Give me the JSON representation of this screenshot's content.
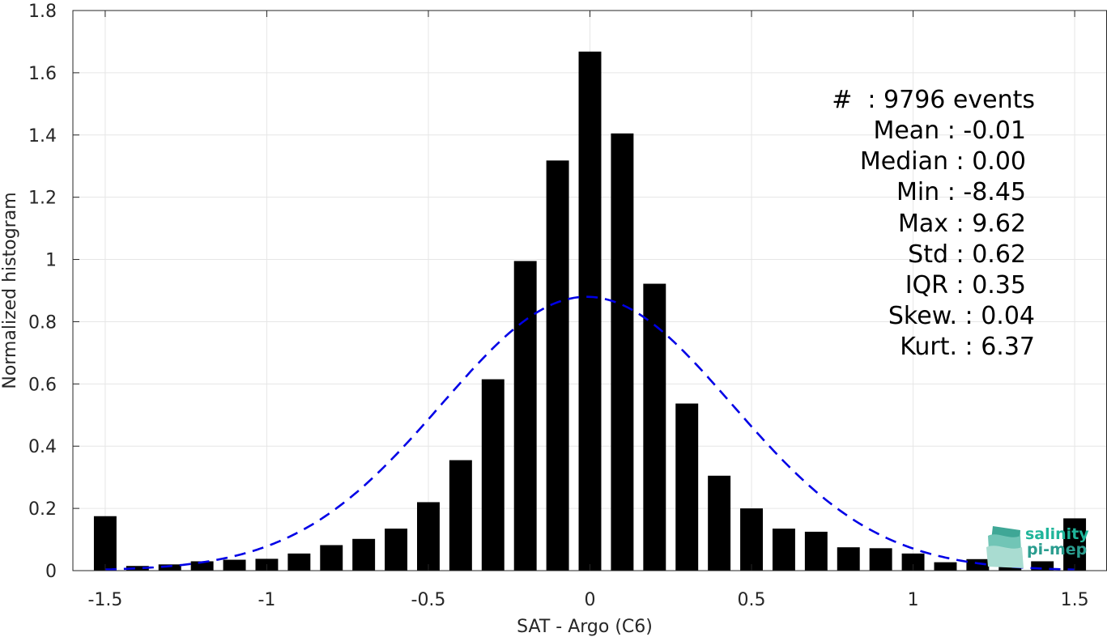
{
  "chart_data": {
    "type": "bar",
    "xlabel": "SAT - Argo (C6)",
    "ylabel": "Normalized histogram",
    "xlim": [
      -1.6,
      1.6
    ],
    "ylim": [
      0,
      1.8
    ],
    "grid": true,
    "x_ticks": [
      -1.5,
      -1,
      -0.5,
      0,
      0.5,
      1,
      1.5
    ],
    "x_tick_labels": [
      "-1.5",
      "-1",
      "-0.5",
      "0",
      "0.5",
      "1",
      "1.5"
    ],
    "y_ticks": [
      0,
      0.2,
      0.4,
      0.6,
      0.8,
      1,
      1.2,
      1.4,
      1.6,
      1.8
    ],
    "y_tick_labels": [
      "0",
      "0.2",
      "0.4",
      "0.6",
      "0.8",
      "1",
      "1.2",
      "1.4",
      "1.6",
      "1.8"
    ],
    "bar_width": 0.07,
    "bar_color": "#000000",
    "x": [
      -1.5,
      -1.4,
      -1.3,
      -1.2,
      -1.1,
      -1.0,
      -0.9,
      -0.8,
      -0.7,
      -0.6,
      -0.5,
      -0.4,
      -0.3,
      -0.2,
      -0.1,
      0.0,
      0.1,
      0.2,
      0.3,
      0.4,
      0.5,
      0.6,
      0.7,
      0.8,
      0.9,
      1.0,
      1.1,
      1.2,
      1.3,
      1.4,
      1.5
    ],
    "values": [
      0.175,
      0.015,
      0.02,
      0.03,
      0.035,
      0.038,
      0.055,
      0.082,
      0.102,
      0.135,
      0.22,
      0.355,
      0.615,
      0.995,
      1.318,
      1.668,
      1.405,
      0.922,
      0.537,
      0.305,
      0.2,
      0.135,
      0.125,
      0.075,
      0.072,
      0.055,
      0.027,
      0.037,
      0.015,
      0.03,
      0.168
    ],
    "fit_curve": {
      "type": "normal",
      "mean": -0.01,
      "std": 0.45,
      "peak": 0.88,
      "color": "#0000e6",
      "style": "dashed"
    },
    "annotations": [
      "#  : 9796 events",
      "Mean : -0.01",
      "Median : 0.00",
      "Min : -8.45",
      "Max : 9.62",
      "Std : 0.62",
      "IQR : 0.35",
      "Skew. : 0.04",
      "Kurt. : 6.37"
    ]
  },
  "logo": {
    "line1": "salinity",
    "line2": "pi-mep",
    "color1": "#1fb59a",
    "color2": "#2a9d8f"
  }
}
